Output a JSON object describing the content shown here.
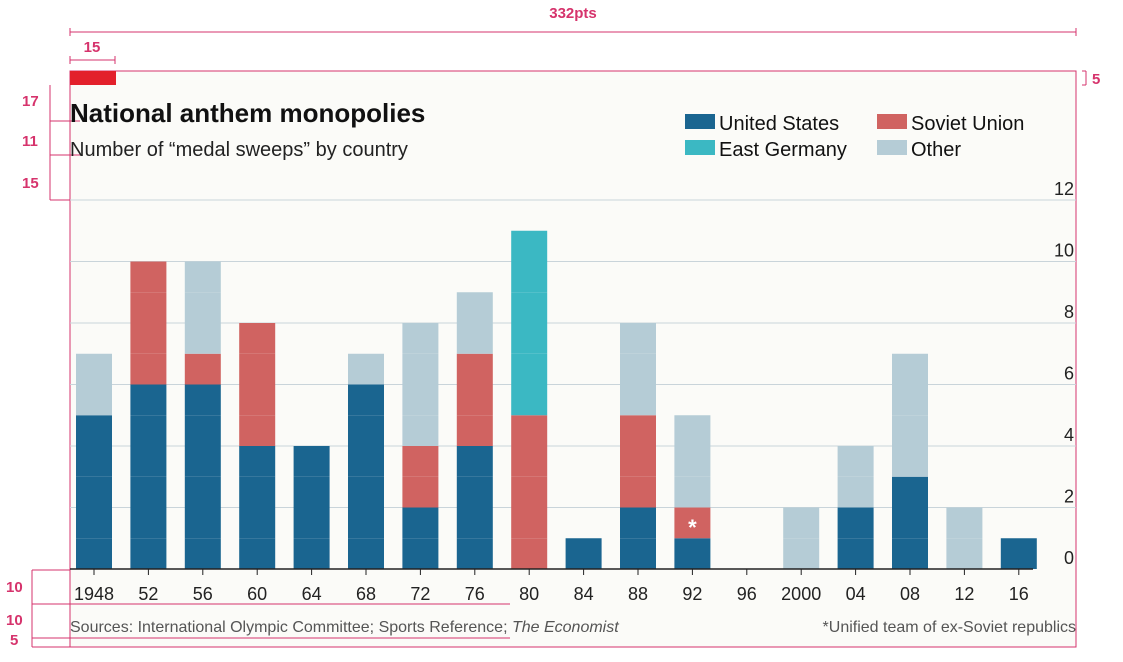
{
  "annotations": {
    "width_label": "332pts",
    "left_margin": "15",
    "right_margin": "5",
    "title_gap": "17",
    "subtitle_gap": "11",
    "chart_gap": "15",
    "axis_gap": "10",
    "source_gap": "10",
    "bottom_margin": "5"
  },
  "colors": {
    "us": "#1a6590",
    "soviet": "#d06361",
    "eastgermany": "#3bb8c3",
    "other": "#b5ccd6",
    "red_tag": "#e3202b",
    "grid": "#c9d4da",
    "annotation": "#d6336c",
    "background": "#fbfbf8"
  },
  "legend": [
    {
      "key": "us",
      "label": "United States"
    },
    {
      "key": "soviet",
      "label": "Soviet Union"
    },
    {
      "key": "eastgermany",
      "label": "East Germany"
    },
    {
      "key": "other",
      "label": "Other"
    }
  ],
  "footer": {
    "source_prefix": "Sources: International Olympic Committee; Sports Reference; ",
    "source_italic": "The Economist",
    "note": "*Unified team of ex-Soviet republics"
  },
  "chart_data": {
    "type": "bar",
    "stacked": true,
    "title": "National anthem monopolies",
    "subtitle": "Number of “medal sweeps” by country",
    "categories": [
      "1948",
      "52",
      "56",
      "60",
      "64",
      "68",
      "72",
      "76",
      "80",
      "84",
      "88",
      "92",
      "96",
      "2000",
      "04",
      "08",
      "12",
      "16"
    ],
    "series": [
      {
        "name": "United States",
        "key": "us",
        "values": [
          5,
          6,
          6,
          4,
          4,
          6,
          2,
          4,
          0,
          1,
          2,
          1,
          0,
          0,
          2,
          3,
          0,
          1
        ]
      },
      {
        "name": "Soviet Union",
        "key": "soviet",
        "values": [
          0,
          4,
          1,
          4,
          0,
          0,
          2,
          3,
          5,
          0,
          3,
          1,
          0,
          0,
          0,
          0,
          0,
          0
        ]
      },
      {
        "name": "East Germany",
        "key": "eastgermany",
        "values": [
          0,
          0,
          0,
          0,
          0,
          0,
          0,
          0,
          6,
          0,
          0,
          0,
          0,
          0,
          0,
          0,
          0,
          0
        ]
      },
      {
        "name": "Other",
        "key": "other",
        "values": [
          2,
          0,
          3,
          0,
          0,
          1,
          4,
          2,
          0,
          0,
          3,
          3,
          0,
          2,
          2,
          4,
          2,
          0
        ]
      }
    ],
    "yticks": [
      "0",
      "2",
      "4",
      "6",
      "8",
      "10",
      "12"
    ],
    "ylim": [
      0,
      12
    ],
    "y_axis_side": "right",
    "grid": true,
    "legend_position": "top-right",
    "marker": {
      "category": "92",
      "series": "soviet",
      "text": "*"
    }
  }
}
